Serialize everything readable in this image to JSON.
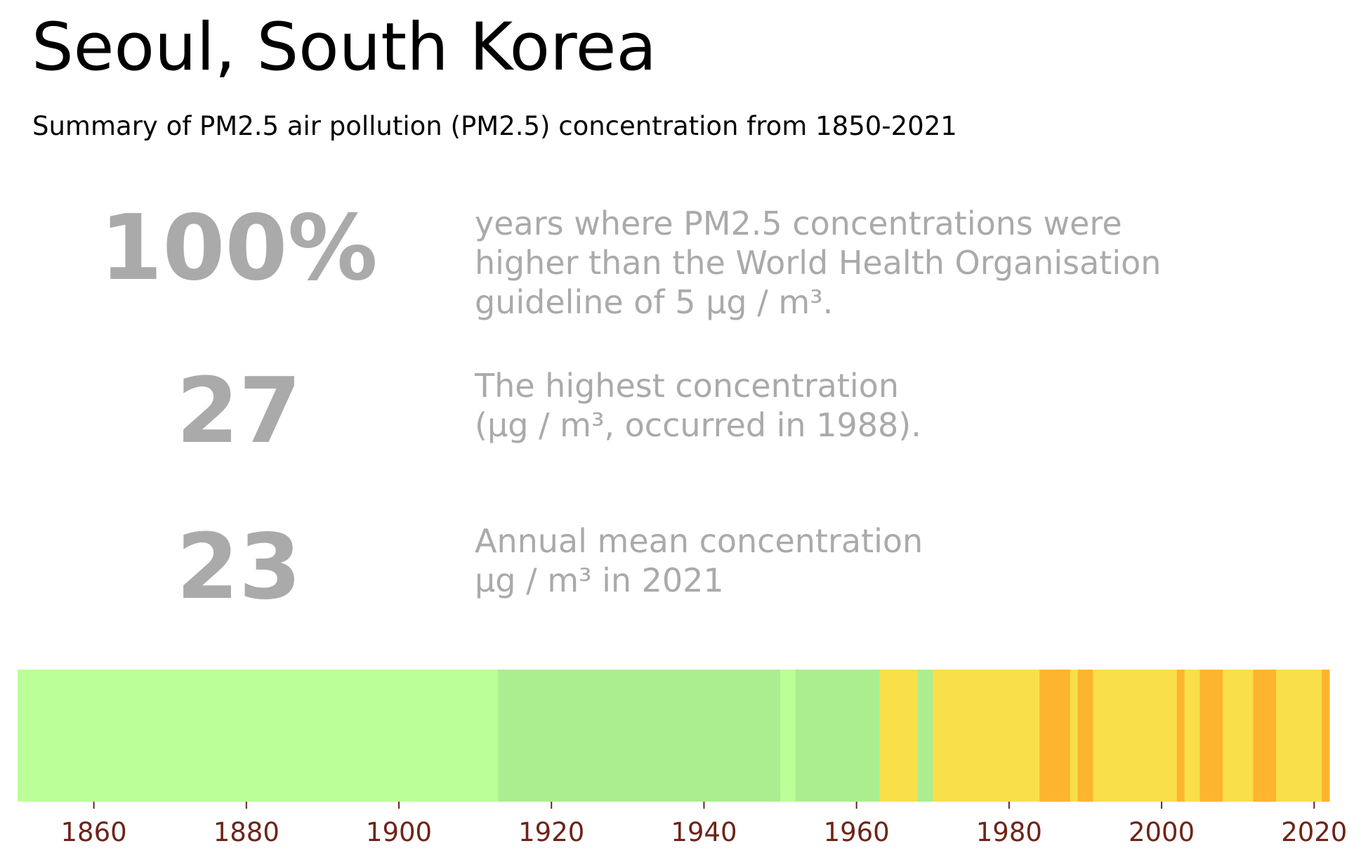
{
  "title": "Seoul, South Korea",
  "subtitle": "Summary of PM2.5 air pollution (PM2.5) concentration from 1850-2021",
  "stats": [
    {
      "value": "100%",
      "description": "years where PM2.5 concentrations were\nhigher than the World Health Organisation\nguideline of 5 µg / m³."
    },
    {
      "value": "27",
      "description": "The highest concentration\n(µg / m³, occurred in 1988)."
    },
    {
      "value": "23",
      "description": "Annual mean concentration\nµg / m³ in 2021"
    }
  ],
  "colors": {
    "stat_gray": "#aaaaaa",
    "tick_color": "#6e2418",
    "band_light_green": "#bbff99",
    "band_green": "#aaee90",
    "band_yellow": "#f9df4a",
    "band_orange": "#fdb42f"
  },
  "chart_data": {
    "type": "heatmap",
    "title": "",
    "xlabel": "",
    "ylabel": "",
    "xlim": [
      1850,
      2022
    ],
    "x_ticks": [
      1860,
      1880,
      1900,
      1920,
      1940,
      1960,
      1980,
      2000,
      2020
    ],
    "grid": false,
    "legend": "none",
    "bands": [
      {
        "start": 1850,
        "end": 1913,
        "category": "light-green",
        "color": "#bbff99"
      },
      {
        "start": 1913,
        "end": 1950,
        "category": "green",
        "color": "#aaee90"
      },
      {
        "start": 1950,
        "end": 1952,
        "category": "light-green",
        "color": "#bbff99"
      },
      {
        "start": 1952,
        "end": 1963,
        "category": "green",
        "color": "#aaee90"
      },
      {
        "start": 1963,
        "end": 1968,
        "category": "yellow",
        "color": "#f9df4a"
      },
      {
        "start": 1968,
        "end": 1970,
        "category": "green",
        "color": "#aaee90"
      },
      {
        "start": 1970,
        "end": 1984,
        "category": "yellow",
        "color": "#f9df4a"
      },
      {
        "start": 1984,
        "end": 1988,
        "category": "orange",
        "color": "#fdb42f"
      },
      {
        "start": 1988,
        "end": 1989,
        "category": "yellow",
        "color": "#f9df4a"
      },
      {
        "start": 1989,
        "end": 1991,
        "category": "orange",
        "color": "#fdb42f"
      },
      {
        "start": 1991,
        "end": 2002,
        "category": "yellow",
        "color": "#f9df4a"
      },
      {
        "start": 2002,
        "end": 2003,
        "category": "orange",
        "color": "#fdb42f"
      },
      {
        "start": 2003,
        "end": 2005,
        "category": "yellow",
        "color": "#f9df4a"
      },
      {
        "start": 2005,
        "end": 2008,
        "category": "orange",
        "color": "#fdb42f"
      },
      {
        "start": 2008,
        "end": 2012,
        "category": "yellow",
        "color": "#f9df4a"
      },
      {
        "start": 2012,
        "end": 2015,
        "category": "orange",
        "color": "#fdb42f"
      },
      {
        "start": 2015,
        "end": 2021,
        "category": "yellow",
        "color": "#f9df4a"
      },
      {
        "start": 2021,
        "end": 2022,
        "category": "orange",
        "color": "#fdb42f"
      }
    ]
  }
}
